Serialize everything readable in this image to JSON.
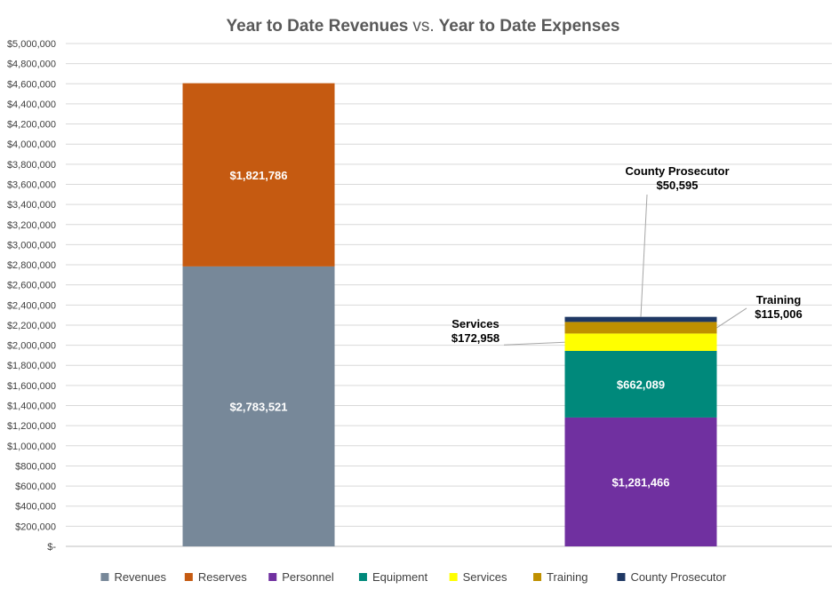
{
  "chart_data": {
    "type": "bar",
    "stacked": true,
    "title": {
      "part1": "Year to Date Revenues",
      "part2": "vs.",
      "part3": "Year to Date Expenses"
    },
    "categories": [
      "",
      ""
    ],
    "ylim": [
      0,
      5000000
    ],
    "y_tick_step": 200000,
    "y_tick_labels": [
      "$-",
      "$200,000",
      "$400,000",
      "$600,000",
      "$800,000",
      "$1,000,000",
      "$1,200,000",
      "$1,400,000",
      "$1,600,000",
      "$1,800,000",
      "$2,000,000",
      "$2,200,000",
      "$2,400,000",
      "$2,600,000",
      "$2,800,000",
      "$3,000,000",
      "$3,200,000",
      "$3,400,000",
      "$3,600,000",
      "$3,800,000",
      "$4,000,000",
      "$4,200,000",
      "$4,400,000",
      "$4,600,000",
      "$4,800,000",
      "$5,000,000"
    ],
    "grid": true,
    "legend_position": "bottom",
    "series": [
      {
        "name": "Revenues",
        "color": "#778899",
        "values": [
          2783521,
          0
        ],
        "labels": [
          "$2,783,521",
          ""
        ],
        "label_style": "inside"
      },
      {
        "name": "Reserves",
        "color": "#C55A11",
        "values": [
          1821786,
          0
        ],
        "labels": [
          "$1,821,786",
          ""
        ],
        "label_style": "inside"
      },
      {
        "name": "Personnel",
        "color": "#7030A0",
        "values": [
          0,
          1281466
        ],
        "labels": [
          "",
          "$1,281,466"
        ],
        "label_style": "inside"
      },
      {
        "name": "Equipment",
        "color": "#00897B",
        "values": [
          0,
          662089
        ],
        "labels": [
          "",
          "$662,089"
        ],
        "label_style": "inside"
      },
      {
        "name": "Services",
        "color": "#FFFF00",
        "values": [
          0,
          172958
        ],
        "labels": [
          "",
          "Services\n$172,958"
        ],
        "label_style": "callout-left"
      },
      {
        "name": "Training",
        "color": "#BF9000",
        "values": [
          0,
          115006
        ],
        "labels": [
          "",
          "Training\n$115,006"
        ],
        "label_style": "callout-right"
      },
      {
        "name": "County Prosecutor",
        "color": "#1F3864",
        "values": [
          0,
          50595
        ],
        "labels": [
          "",
          "County Prosecutor\n$50,595"
        ],
        "label_style": "callout-top"
      }
    ]
  }
}
